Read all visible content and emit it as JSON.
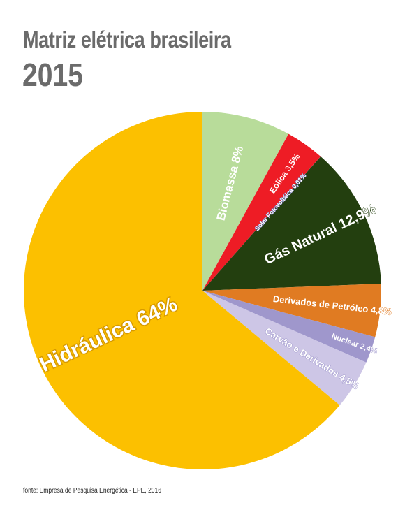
{
  "title": "Matriz elétrica brasileira",
  "subtitle": "2015",
  "source": "fonte: Empresa de Pesquisa Energética - EPE, 2016",
  "chart_data": {
    "type": "pie",
    "title": "Matriz elétrica brasileira",
    "subtitle": "2015",
    "slices": [
      {
        "label": "Biomassa",
        "value": 8,
        "text": "Biomassa 8%",
        "color": "#b8dc9a",
        "text_color": "#ffffff",
        "halo": "#b8dc9a"
      },
      {
        "label": "Eólica",
        "value": 3.5,
        "text": "Eólica 3,5%",
        "color": "#ee1c25",
        "text_color": "#ffffff",
        "halo": "#ee1c25"
      },
      {
        "label": "Solar Fotovoltáica",
        "value": 0.01,
        "text": "Solar Fotovoltáica 0,01%",
        "color": "#6d6fb4",
        "text_color": "#ffffff",
        "halo": "#6d6fb4"
      },
      {
        "label": "Gás Natural",
        "value": 12.9,
        "text": "Gás Natural 12,9%",
        "color": "#233f0f",
        "text_color": "#ffffff",
        "halo": "#233f0f"
      },
      {
        "label": "Derivados de Petróleo",
        "value": 4.8,
        "text": "Derivados de Petróleo 4,8%",
        "color": "#e07b22",
        "text_color": "#ffffff",
        "halo": "#e07b22"
      },
      {
        "label": "Nuclear",
        "value": 2.4,
        "text": "Nuclear 2,4%",
        "color": "#9f97cc",
        "text_color": "#ffffff",
        "halo": "#9f97cc"
      },
      {
        "label": "Carvão e Derivados",
        "value": 4.5,
        "text": "Carvão e Derivados 4,5%",
        "color": "#cdc6e6",
        "text_color": "#ffffff",
        "halo": "#9f97cc"
      },
      {
        "label": "Hidráulica",
        "value": 64,
        "text": "Hidráulica 64%",
        "color": "#fcc000",
        "text_color": "#ffffff",
        "halo": "#d79a00"
      }
    ]
  }
}
